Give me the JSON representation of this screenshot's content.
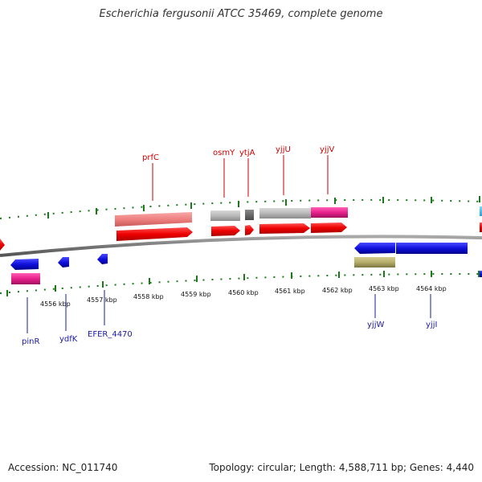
{
  "title": "Escherichia fergusonii ATCC 35469, complete genome",
  "footer": {
    "accession": "Accession: NC_011740",
    "summary": "Topology: circular; Length: 4,588,711 bp; Genes: 4,440"
  },
  "ticks": [
    "4556 kbp",
    "4557 kbp",
    "4558 kbp",
    "4559 kbp",
    "4560 kbp",
    "4561 kbp",
    "4562 kbp",
    "4563 kbp",
    "4564 kbp"
  ],
  "top_genes": [
    "prfC",
    "osmY",
    "ytjA",
    "yjjU",
    "yjjV"
  ],
  "bottom_genes": [
    "pinR",
    "ydfK",
    "EFER_4470",
    "yjjW",
    "yjjI"
  ],
  "colors": {
    "forward_gene": "#ee0000",
    "reverse_gene": "#1010dd",
    "label_top": "#cc0000",
    "label_bottom": "#1a1aa0",
    "tick": "#1a7a1a",
    "backbone": "#777777",
    "rna_pink": "#e8208c",
    "pseudo_grey": "#b0b0b0",
    "olive": "#b5ad6a"
  }
}
